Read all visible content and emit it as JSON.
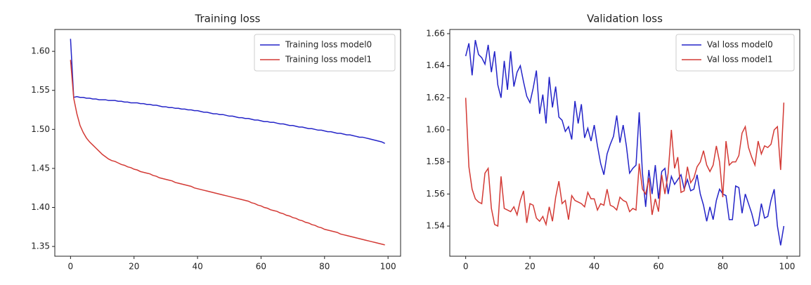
{
  "chart_data": [
    {
      "type": "line",
      "title": "Training loss",
      "x": [
        0,
        1,
        2,
        3,
        4,
        5,
        6,
        7,
        8,
        9,
        10,
        11,
        12,
        13,
        14,
        15,
        16,
        17,
        18,
        19,
        20,
        21,
        22,
        23,
        24,
        25,
        26,
        27,
        28,
        29,
        30,
        31,
        32,
        33,
        34,
        35,
        36,
        37,
        38,
        39,
        40,
        41,
        42,
        43,
        44,
        45,
        46,
        47,
        48,
        49,
        50,
        51,
        52,
        53,
        54,
        55,
        56,
        57,
        58,
        59,
        60,
        61,
        62,
        63,
        64,
        65,
        66,
        67,
        68,
        69,
        70,
        71,
        72,
        73,
        74,
        75,
        76,
        77,
        78,
        79,
        80,
        81,
        82,
        83,
        84,
        85,
        86,
        87,
        88,
        89,
        90,
        91,
        92,
        93,
        94,
        95,
        96,
        97,
        98,
        99
      ],
      "series": [
        {
          "name": "Training loss model0",
          "color": "#2424c8",
          "values": [
            1.616,
            1.541,
            1.542,
            1.541,
            1.541,
            1.54,
            1.54,
            1.539,
            1.539,
            1.538,
            1.538,
            1.538,
            1.537,
            1.537,
            1.537,
            1.536,
            1.536,
            1.535,
            1.535,
            1.534,
            1.534,
            1.534,
            1.533,
            1.533,
            1.532,
            1.532,
            1.531,
            1.531,
            1.53,
            1.529,
            1.529,
            1.528,
            1.528,
            1.527,
            1.527,
            1.526,
            1.526,
            1.525,
            1.525,
            1.524,
            1.524,
            1.523,
            1.522,
            1.522,
            1.521,
            1.52,
            1.52,
            1.519,
            1.519,
            1.518,
            1.517,
            1.517,
            1.516,
            1.515,
            1.515,
            1.514,
            1.514,
            1.513,
            1.512,
            1.512,
            1.511,
            1.51,
            1.51,
            1.509,
            1.509,
            1.508,
            1.507,
            1.507,
            1.506,
            1.505,
            1.505,
            1.504,
            1.503,
            1.503,
            1.502,
            1.501,
            1.501,
            1.5,
            1.499,
            1.499,
            1.498,
            1.497,
            1.497,
            1.496,
            1.495,
            1.495,
            1.494,
            1.493,
            1.493,
            1.492,
            1.491,
            1.49,
            1.49,
            1.489,
            1.488,
            1.487,
            1.486,
            1.485,
            1.484,
            1.482
          ]
        },
        {
          "name": "Training loss model1",
          "color": "#d33a35",
          "values": [
            1.589,
            1.54,
            1.52,
            1.505,
            1.496,
            1.489,
            1.484,
            1.48,
            1.476,
            1.472,
            1.468,
            1.465,
            1.462,
            1.46,
            1.459,
            1.457,
            1.455,
            1.454,
            1.452,
            1.451,
            1.449,
            1.448,
            1.446,
            1.445,
            1.444,
            1.443,
            1.441,
            1.44,
            1.438,
            1.437,
            1.436,
            1.435,
            1.434,
            1.432,
            1.431,
            1.43,
            1.429,
            1.428,
            1.427,
            1.425,
            1.424,
            1.423,
            1.422,
            1.421,
            1.42,
            1.419,
            1.418,
            1.417,
            1.416,
            1.415,
            1.414,
            1.413,
            1.412,
            1.411,
            1.41,
            1.409,
            1.408,
            1.406,
            1.405,
            1.403,
            1.402,
            1.4,
            1.399,
            1.397,
            1.396,
            1.395,
            1.393,
            1.392,
            1.39,
            1.389,
            1.387,
            1.386,
            1.384,
            1.383,
            1.381,
            1.38,
            1.378,
            1.377,
            1.375,
            1.374,
            1.372,
            1.371,
            1.37,
            1.369,
            1.368,
            1.366,
            1.365,
            1.364,
            1.363,
            1.362,
            1.361,
            1.36,
            1.359,
            1.358,
            1.357,
            1.356,
            1.355,
            1.354,
            1.353,
            1.352
          ]
        }
      ],
      "xlim": [
        -4.95,
        103.95
      ],
      "xticks": [
        0,
        20,
        40,
        60,
        80,
        100
      ],
      "ylim": [
        1.3375,
        1.628
      ],
      "yticks": [
        1.35,
        {
          "value": 1.4,
          "label": "1.40"
        },
        1.45,
        {
          "value": 1.5,
          "label": "1.50"
        },
        1.55,
        {
          "value": 1.6,
          "label": "1.60"
        }
      ],
      "legend": "upper right"
    },
    {
      "type": "line",
      "title": "Validation loss",
      "x": [
        0,
        1,
        2,
        3,
        4,
        5,
        6,
        7,
        8,
        9,
        10,
        11,
        12,
        13,
        14,
        15,
        16,
        17,
        18,
        19,
        20,
        21,
        22,
        23,
        24,
        25,
        26,
        27,
        28,
        29,
        30,
        31,
        32,
        33,
        34,
        35,
        36,
        37,
        38,
        39,
        40,
        41,
        42,
        43,
        44,
        45,
        46,
        47,
        48,
        49,
        50,
        51,
        52,
        53,
        54,
        55,
        56,
        57,
        58,
        59,
        60,
        61,
        62,
        63,
        64,
        65,
        66,
        67,
        68,
        69,
        70,
        71,
        72,
        73,
        74,
        75,
        76,
        77,
        78,
        79,
        80,
        81,
        82,
        83,
        84,
        85,
        86,
        87,
        88,
        89,
        90,
        91,
        92,
        93,
        94,
        95,
        96,
        97,
        98,
        99
      ],
      "series": [
        {
          "name": "Val loss model0",
          "color": "#2424c8",
          "values": [
            1.646,
            1.654,
            1.634,
            1.656,
            1.647,
            1.645,
            1.641,
            1.653,
            1.636,
            1.649,
            1.628,
            1.62,
            1.643,
            1.625,
            1.649,
            1.627,
            1.636,
            1.64,
            1.63,
            1.621,
            1.617,
            1.626,
            1.637,
            1.61,
            1.622,
            1.604,
            1.633,
            1.614,
            1.627,
            1.608,
            1.606,
            1.599,
            1.602,
            1.594,
            1.618,
            1.604,
            1.616,
            1.595,
            1.601,
            1.593,
            1.603,
            1.59,
            1.579,
            1.572,
            1.585,
            1.591,
            1.596,
            1.609,
            1.592,
            1.603,
            1.59,
            1.573,
            1.576,
            1.578,
            1.611,
            1.573,
            1.552,
            1.575,
            1.56,
            1.578,
            1.557,
            1.574,
            1.576,
            1.56,
            1.571,
            1.566,
            1.569,
            1.572,
            1.563,
            1.569,
            1.562,
            1.563,
            1.572,
            1.56,
            1.553,
            1.543,
            1.552,
            1.544,
            1.556,
            1.563,
            1.56,
            1.559,
            1.544,
            1.544,
            1.565,
            1.564,
            1.548,
            1.56,
            1.554,
            1.548,
            1.54,
            1.541,
            1.554,
            1.545,
            1.546,
            1.556,
            1.563,
            1.54,
            1.528,
            1.54
          ]
        },
        {
          "name": "Val loss model1",
          "color": "#d33a35",
          "values": [
            1.62,
            1.577,
            1.563,
            1.557,
            1.555,
            1.554,
            1.573,
            1.576,
            1.551,
            1.541,
            1.54,
            1.571,
            1.551,
            1.55,
            1.549,
            1.552,
            1.547,
            1.556,
            1.562,
            1.542,
            1.554,
            1.553,
            1.545,
            1.543,
            1.546,
            1.541,
            1.552,
            1.543,
            1.558,
            1.568,
            1.554,
            1.556,
            1.544,
            1.559,
            1.556,
            1.555,
            1.554,
            1.552,
            1.561,
            1.557,
            1.557,
            1.55,
            1.554,
            1.553,
            1.563,
            1.553,
            1.552,
            1.55,
            1.558,
            1.556,
            1.555,
            1.549,
            1.551,
            1.55,
            1.579,
            1.563,
            1.56,
            1.57,
            1.547,
            1.557,
            1.549,
            1.572,
            1.56,
            1.573,
            1.6,
            1.576,
            1.583,
            1.561,
            1.562,
            1.577,
            1.567,
            1.57,
            1.577,
            1.58,
            1.587,
            1.578,
            1.574,
            1.578,
            1.59,
            1.58,
            1.558,
            1.593,
            1.578,
            1.58,
            1.58,
            1.584,
            1.598,
            1.602,
            1.589,
            1.583,
            1.578,
            1.593,
            1.585,
            1.59,
            1.589,
            1.591,
            1.6,
            1.602,
            1.575,
            1.617
          ]
        }
      ],
      "xlim": [
        -4.95,
        103.95
      ],
      "xticks": [
        0,
        20,
        40,
        60,
        80,
        100
      ],
      "ylim": [
        1.5212,
        1.6626
      ],
      "yticks": [
        1.54,
        1.56,
        1.58,
        {
          "value": 1.6,
          "label": "1.60"
        },
        1.62,
        1.64,
        1.66
      ],
      "legend": "upper right"
    }
  ]
}
